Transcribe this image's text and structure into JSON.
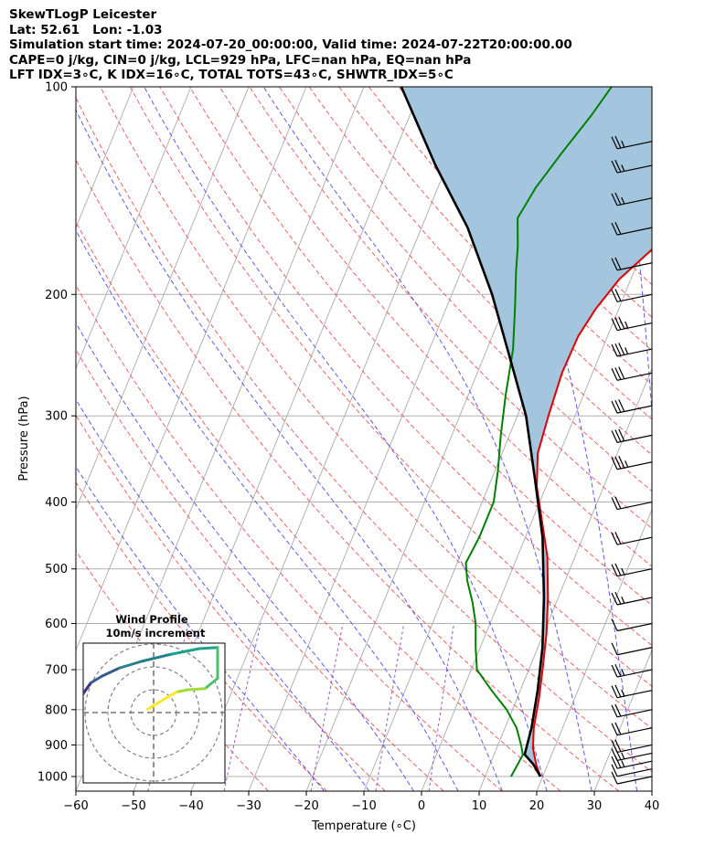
{
  "title_lines": [
    "SkewTLogP Leicester",
    "Lat: 52.61   Lon: -1.03",
    "Simulation start time: 2024-07-20_00:00:00, Valid time: 2024-07-22T20:00:00.00",
    "CAPE=0 j/kg, CIN=0 j/kg, LCL=929 hPa, LFC=nan hPa, EQ=nan hPa",
    "LFT IDX=3∘C, K IDX=16∘C, TOTAL TOTS=43∘C, SHWTR_IDX=5∘C"
  ],
  "chart_data": {
    "type": "line",
    "xlabel": "Temperature (∘C)",
    "ylabel": "Pressure (hPa)",
    "xlim": [
      -60,
      40
    ],
    "ylim": [
      1050,
      100
    ],
    "y_scale": "log",
    "x_ticks": [
      -60,
      -50,
      -40,
      -30,
      -20,
      -10,
      0,
      10,
      20,
      30,
      40
    ],
    "x_tick_labels": [
      "−60",
      "−50",
      "−40",
      "−30",
      "−20",
      "−10",
      "0",
      "10",
      "20",
      "30",
      "40"
    ],
    "y_ticks": [
      1000,
      900,
      800,
      700,
      600,
      500,
      400,
      300,
      200,
      100
    ],
    "grid": true,
    "series": [
      {
        "color": "#e00000",
        "points": [
          [
            19.6,
            1000
          ],
          [
            18.0,
            960
          ],
          [
            16.3,
            910
          ],
          [
            15.0,
            850
          ],
          [
            13.8,
            770
          ],
          [
            12.4,
            700
          ],
          [
            10.5,
            620
          ],
          [
            8.2,
            550
          ],
          [
            5.2,
            480
          ],
          [
            2.0,
            430
          ],
          [
            -1.6,
            380
          ],
          [
            -3.8,
            340
          ],
          [
            -4.6,
            300
          ],
          [
            -5.3,
            260
          ],
          [
            -5.1,
            230
          ],
          [
            -4.0,
            210
          ],
          [
            -2.0,
            190
          ],
          [
            2.0,
            170
          ],
          [
            6.5,
            150
          ],
          [
            11.0,
            135
          ],
          [
            13.5,
            125
          ],
          [
            15.0,
            115
          ],
          [
            16.0,
            105
          ],
          [
            16.5,
            100
          ]
        ]
      },
      {
        "color": "#008000",
        "points": [
          [
            14.5,
            1000
          ],
          [
            14.8,
            960
          ],
          [
            15.0,
            930
          ],
          [
            14.0,
            900
          ],
          [
            12.0,
            850
          ],
          [
            9.0,
            800
          ],
          [
            5.0,
            750
          ],
          [
            1.0,
            700
          ],
          [
            -0.8,
            650
          ],
          [
            -2.5,
            600
          ],
          [
            -4.5,
            560
          ],
          [
            -7.0,
            520
          ],
          [
            -8.5,
            490
          ],
          [
            -8.0,
            450
          ],
          [
            -8.0,
            400
          ],
          [
            -9.5,
            360
          ],
          [
            -11.5,
            320
          ],
          [
            -13.5,
            280
          ],
          [
            -15.5,
            240
          ],
          [
            -18.0,
            210
          ],
          [
            -20.5,
            185
          ],
          [
            -22.0,
            170
          ],
          [
            -24.0,
            155
          ],
          [
            -23.0,
            140
          ],
          [
            -21.0,
            125
          ],
          [
            -18.5,
            110
          ],
          [
            -17.0,
            100
          ]
        ]
      },
      {
        "color": "#000000",
        "points": [
          [
            19.6,
            1000
          ],
          [
            17.5,
            960
          ],
          [
            15.3,
            929
          ],
          [
            14.6,
            850
          ],
          [
            13.0,
            750
          ],
          [
            10.8,
            650
          ],
          [
            7.5,
            550
          ],
          [
            3.0,
            450
          ],
          [
            -2.5,
            370
          ],
          [
            -8.5,
            300
          ],
          [
            -15.0,
            250
          ],
          [
            -23.0,
            200
          ],
          [
            -32.0,
            160
          ],
          [
            -42.0,
            130
          ],
          [
            -53.5,
            100
          ]
        ]
      }
    ],
    "shaded_region": "between environmental temperature and parcel path",
    "wind_barbs": [
      {
        "p": 1000,
        "speed": 10,
        "dir": 250
      },
      {
        "p": 975,
        "speed": 10,
        "dir": 250
      },
      {
        "p": 950,
        "speed": 15,
        "dir": 250
      },
      {
        "p": 925,
        "speed": 15,
        "dir": 250
      },
      {
        "p": 900,
        "speed": 20,
        "dir": 255
      },
      {
        "p": 850,
        "speed": 20,
        "dir": 255
      },
      {
        "p": 800,
        "speed": 20,
        "dir": 255
      },
      {
        "p": 750,
        "speed": 15,
        "dir": 260
      },
      {
        "p": 700,
        "speed": 15,
        "dir": 260
      },
      {
        "p": 650,
        "speed": 10,
        "dir": 260
      },
      {
        "p": 600,
        "speed": 10,
        "dir": 260
      },
      {
        "p": 550,
        "speed": 15,
        "dir": 260
      },
      {
        "p": 500,
        "speed": 15,
        "dir": 260
      },
      {
        "p": 450,
        "speed": 20,
        "dir": 260
      },
      {
        "p": 400,
        "speed": 20,
        "dir": 260
      },
      {
        "p": 350,
        "speed": 25,
        "dir": 260
      },
      {
        "p": 320,
        "speed": 30,
        "dir": 260
      },
      {
        "p": 290,
        "speed": 30,
        "dir": 265
      },
      {
        "p": 260,
        "speed": 30,
        "dir": 265
      },
      {
        "p": 240,
        "speed": 25,
        "dir": 265
      },
      {
        "p": 220,
        "speed": 25,
        "dir": 265
      },
      {
        "p": 200,
        "speed": 20,
        "dir": 265
      },
      {
        "p": 180,
        "speed": 20,
        "dir": 265
      },
      {
        "p": 160,
        "speed": 20,
        "dir": 265
      },
      {
        "p": 145,
        "speed": 15,
        "dir": 265
      },
      {
        "p": 130,
        "speed": 15,
        "dir": 265
      },
      {
        "p": 120,
        "speed": 15,
        "dir": 265
      }
    ]
  },
  "inset": {
    "title_line1": "Wind Profile",
    "title_line2": "10m/s increment",
    "hodograph": [
      [
        -9.0,
        0.6
      ],
      [
        -8.0,
        0.9
      ],
      [
        -7.0,
        1.1
      ],
      [
        -6.2,
        1.6
      ],
      [
        -5.5,
        2.6
      ],
      [
        -4.5,
        3.2
      ],
      [
        -3.0,
        3.9
      ],
      [
        -1.0,
        4.5
      ],
      [
        1.5,
        5.1
      ],
      [
        4.0,
        5.6
      ],
      [
        5.6,
        5.7
      ],
      [
        5.6,
        3.0
      ],
      [
        4.5,
        2.1
      ],
      [
        3.0,
        2.0
      ],
      [
        2.0,
        1.8
      ],
      [
        0.8,
        1.1
      ],
      [
        -0.5,
        0.3
      ]
    ]
  }
}
